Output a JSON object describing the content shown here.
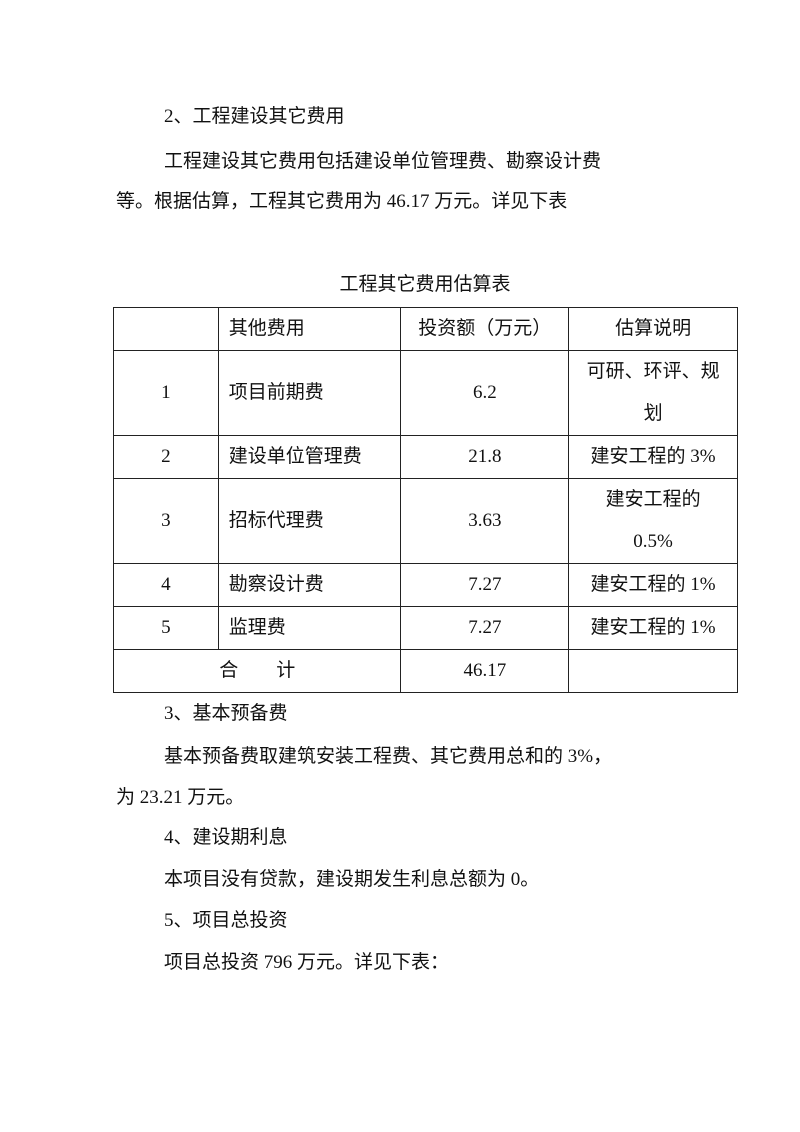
{
  "section2": {
    "heading": "2、工程建设其它费用",
    "para_line1": "工程建设其它费用包括建设单位管理费、勘察设计费",
    "para_line2": "等。根据估算，工程其它费用为 46.17 万元。详见下表"
  },
  "table": {
    "title": "工程其它费用估算表",
    "headers": [
      "",
      "其他费用",
      "投资额（万元）",
      "估算说明"
    ],
    "rows": [
      {
        "no": "1",
        "item": "项目前期费",
        "amount": "6.2",
        "note": "可研、环评、规划"
      },
      {
        "no": "2",
        "item": "建设单位管理费",
        "amount": "21.8",
        "note": "建安工程的 3%"
      },
      {
        "no": "3",
        "item": "招标代理费",
        "amount": "3.63",
        "note": "建安工程的 0.5%"
      },
      {
        "no": "4",
        "item": "勘察设计费",
        "amount": "7.27",
        "note": "建安工程的 1%"
      },
      {
        "no": "5",
        "item": "监理费",
        "amount": "7.27",
        "note": "建安工程的 1%"
      }
    ],
    "total_label": "合　　计",
    "total_amount": "46.17",
    "total_note": ""
  },
  "section3": {
    "heading": "3、基本预备费",
    "para_line1": "基本预备费取建筑安装工程费、其它费用总和的 3%，",
    "para_line2": "为 23.21 万元。"
  },
  "section4": {
    "heading": "4、建设期利息",
    "para": "本项目没有贷款，建设期发生利息总额为 0。"
  },
  "section5": {
    "heading": "5、项目总投资",
    "para": "项目总投资 796 万元。详见下表："
  }
}
